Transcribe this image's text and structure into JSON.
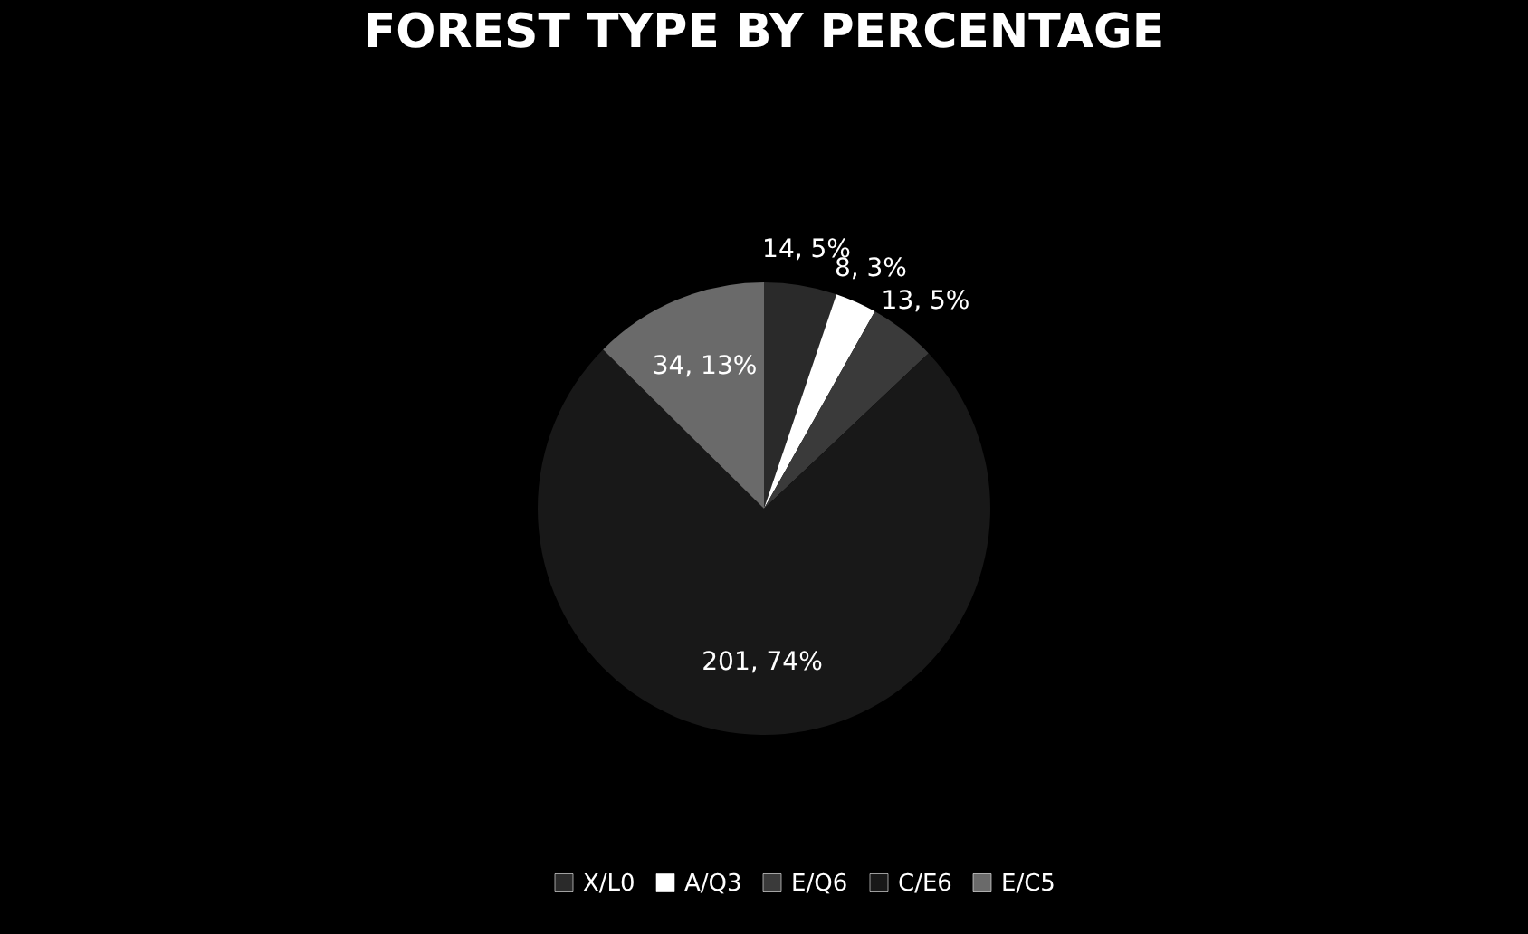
{
  "chart_data": {
    "type": "pie",
    "title": "FOREST TYPE BY PERCENTAGE",
    "categories": [
      "X/L0",
      "A/Q3",
      "E/Q6",
      "C/E6",
      "E/C5"
    ],
    "values": [
      14,
      8,
      13,
      201,
      34
    ],
    "colors": [
      "#2a2a2a",
      "#ffffff",
      "#3a3a3a",
      "#181818",
      "#6a6a6a"
    ],
    "value_labels": [
      "14, 5%",
      "8, 3%",
      "13, 5%",
      "201, 74%",
      "34, 13%"
    ],
    "legend": "bottom"
  }
}
